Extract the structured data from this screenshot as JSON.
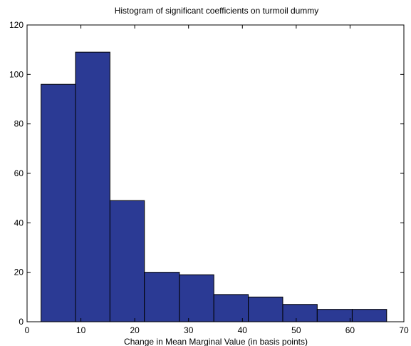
{
  "chart_data": {
    "type": "bar",
    "title": "Histogram of significant coefficients on turmoil dummy",
    "xlabel": "Change in Mean Marginal Value (in basis points)",
    "ylabel": "",
    "xlim": [
      0,
      70
    ],
    "ylim": [
      0,
      120
    ],
    "xticks": [
      0,
      10,
      20,
      30,
      40,
      50,
      60,
      70
    ],
    "yticks": [
      0,
      20,
      40,
      60,
      80,
      100,
      120
    ],
    "bins": [
      {
        "x0": 2.6,
        "x1": 9.0,
        "value": 96
      },
      {
        "x0": 9.0,
        "x1": 15.4,
        "value": 109
      },
      {
        "x0": 15.4,
        "x1": 21.8,
        "value": 49
      },
      {
        "x0": 21.8,
        "x1": 28.3,
        "value": 20
      },
      {
        "x0": 28.3,
        "x1": 34.7,
        "value": 19
      },
      {
        "x0": 34.7,
        "x1": 41.1,
        "value": 11
      },
      {
        "x0": 41.1,
        "x1": 47.5,
        "value": 10
      },
      {
        "x0": 47.5,
        "x1": 53.9,
        "value": 7
      },
      {
        "x0": 53.9,
        "x1": 60.4,
        "value": 5
      },
      {
        "x0": 60.4,
        "x1": 66.8,
        "value": 5
      }
    ],
    "bar_color": "#2b3a94",
    "edge_color": "#000000",
    "grid": false,
    "legend": "none"
  }
}
